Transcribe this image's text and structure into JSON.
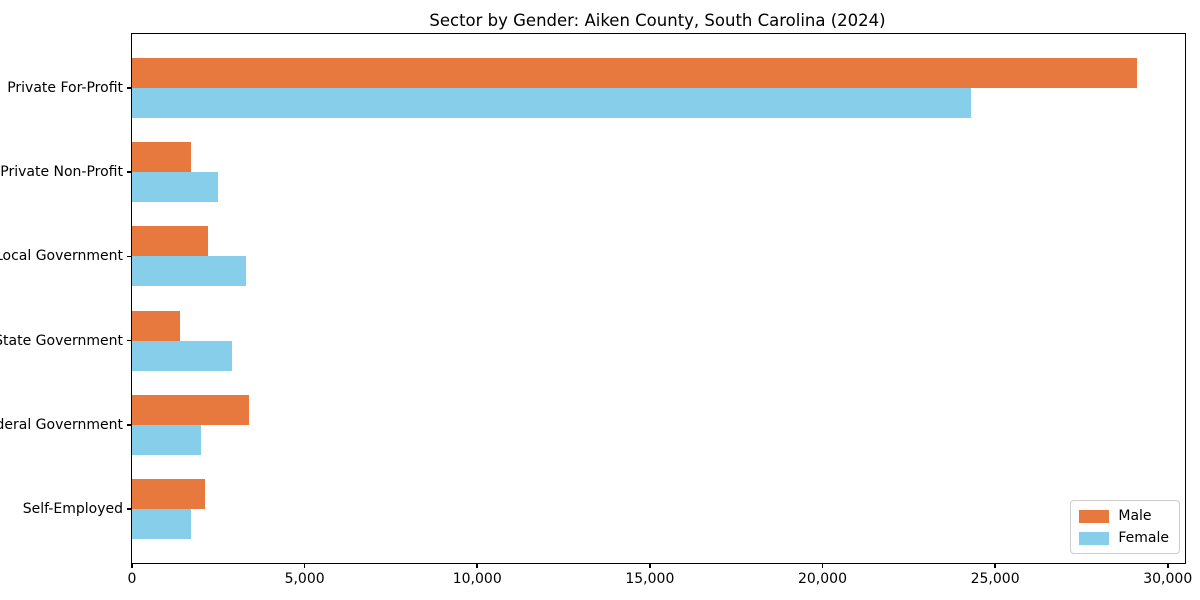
{
  "chart_data": {
    "type": "bar",
    "orientation": "horizontal",
    "title": "Sector by Gender: Aiken County, South Carolina (2024)",
    "categories": [
      "Private For-Profit",
      "Private Non-Profit",
      "Local Government",
      "State Government",
      "Federal Government",
      "Self-Employed"
    ],
    "series": [
      {
        "name": "Male",
        "color": "#e8793e",
        "values": [
          29100,
          1700,
          2200,
          1400,
          3400,
          2100
        ]
      },
      {
        "name": "Female",
        "color": "#87ceeb",
        "values": [
          24300,
          2500,
          3300,
          2900,
          2000,
          1700
        ]
      }
    ],
    "xlabel": "",
    "ylabel": "",
    "xlim": [
      0,
      30500
    ],
    "xticks": [
      0,
      5000,
      10000,
      15000,
      20000,
      25000,
      30000
    ],
    "xtick_labels": [
      "0",
      "5,000",
      "10,000",
      "15,000",
      "20,000",
      "25,000",
      "30,000"
    ],
    "grid": false,
    "legend_position": "lower right",
    "background_color": "#ffffff",
    "text_color": "#000000"
  }
}
